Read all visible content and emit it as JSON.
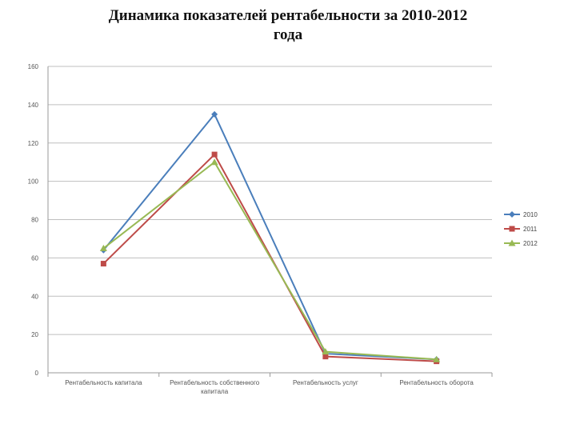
{
  "page": {
    "title_line1": "Динамика показателей рентабельности за 2010-2012",
    "title_line2": "года"
  },
  "chart_data": {
    "type": "line",
    "categories": [
      "Рентабельность капитала",
      "Рентабельность собственного капитала",
      "Рентабельность услуг",
      "Рентабельность оборота"
    ],
    "category_label_lines": [
      [
        "Рентабельность капитала"
      ],
      [
        "Рентабельность собственного",
        "капитала"
      ],
      [
        "Рентабельность услуг"
      ],
      [
        "Рентабельность оборота"
      ]
    ],
    "series": [
      {
        "name": "2010",
        "color": "#4a7ebb",
        "marker": "diamond",
        "values": [
          64,
          135,
          10,
          7
        ]
      },
      {
        "name": "2011",
        "color": "#be4b48",
        "marker": "square",
        "values": [
          57,
          114,
          8.5,
          6
        ]
      },
      {
        "name": "2012",
        "color": "#98b954",
        "marker": "triangle",
        "values": [
          65,
          110,
          11,
          7
        ]
      }
    ],
    "ylim": [
      0,
      160
    ],
    "yticks": [
      0,
      20,
      40,
      60,
      80,
      100,
      120,
      140,
      160
    ],
    "ytick_labels": [
      "0",
      "20",
      "40",
      "60",
      "80",
      "100",
      "120",
      "140",
      "160"
    ],
    "grid": true,
    "legend_position": "right",
    "title": "",
    "xlabel": "",
    "ylabel": ""
  }
}
